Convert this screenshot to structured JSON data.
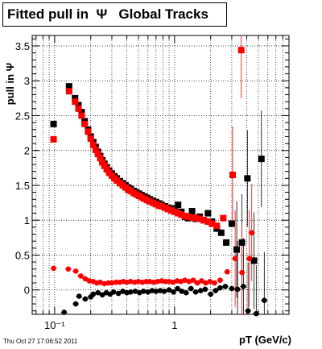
{
  "title": "Fitted pull in  Ψ   Global Tracks",
  "datestamp": "Thu Oct 27 17:06:52 2011",
  "chart_data": {
    "type": "scatter",
    "title": "Fitted pull in  Ψ   Global Tracks",
    "xlabel": "pT (GeV/c)",
    "ylabel": "pull in Ψ",
    "xscale": "log",
    "xlim": [
      0.065,
      9.0
    ],
    "ylim": [
      -0.35,
      3.65
    ],
    "x_ticks": [
      {
        "value": 0.1,
        "label": "10⁻¹"
      },
      {
        "value": 1,
        "label": "1"
      }
    ],
    "y_ticks": [
      {
        "value": 0,
        "label": "0"
      },
      {
        "value": 0.5,
        "label": "0.5"
      },
      {
        "value": 1,
        "label": "1"
      },
      {
        "value": 1.5,
        "label": "1.5"
      },
      {
        "value": 2,
        "label": "2"
      },
      {
        "value": 2.5,
        "label": "2.5"
      },
      {
        "value": 3,
        "label": "3"
      },
      {
        "value": 3.5,
        "label": "3.5"
      }
    ],
    "colors": {
      "black": "#000000",
      "red": "#ff0000"
    },
    "series": [
      {
        "color": "black",
        "marker": "square",
        "points": [
          [
            0.098,
            2.38
          ],
          [
            0.132,
            2.92
          ],
          [
            0.148,
            2.75
          ],
          [
            0.158,
            2.65
          ],
          [
            0.168,
            2.55
          ],
          [
            0.178,
            2.42
          ],
          [
            0.19,
            2.3
          ],
          [
            0.2,
            2.2
          ],
          [
            0.21,
            2.12
          ],
          [
            0.22,
            2.05
          ],
          [
            0.23,
            1.98
          ],
          [
            0.24,
            1.92
          ],
          [
            0.25,
            1.86
          ],
          [
            0.26,
            1.81
          ],
          [
            0.272,
            1.76
          ],
          [
            0.285,
            1.71
          ],
          [
            0.3,
            1.67
          ],
          [
            0.315,
            1.63
          ],
          [
            0.33,
            1.6
          ],
          [
            0.35,
            1.56
          ],
          [
            0.37,
            1.53
          ],
          [
            0.39,
            1.5
          ],
          [
            0.41,
            1.47
          ],
          [
            0.43,
            1.45
          ],
          [
            0.455,
            1.42
          ],
          [
            0.48,
            1.4
          ],
          [
            0.505,
            1.38
          ],
          [
            0.53,
            1.36
          ],
          [
            0.56,
            1.34
          ],
          [
            0.59,
            1.32
          ],
          [
            0.62,
            1.3
          ],
          [
            0.66,
            1.28
          ],
          [
            0.7,
            1.26
          ],
          [
            0.74,
            1.24
          ],
          [
            0.78,
            1.22
          ],
          [
            0.83,
            1.2
          ],
          [
            0.88,
            1.18
          ],
          [
            0.94,
            1.17
          ],
          [
            1.0,
            1.15
          ],
          [
            1.07,
            1.22
          ],
          [
            1.14,
            1.12
          ],
          [
            1.22,
            1.05
          ],
          [
            1.3,
            1.03
          ],
          [
            1.4,
            1.13
          ],
          [
            1.5,
            1.02
          ],
          [
            1.62,
            1.05
          ],
          [
            1.75,
            1.0
          ],
          [
            1.9,
            1.1
          ],
          [
            2.05,
            0.98
          ],
          [
            2.25,
            0.88
          ],
          [
            2.45,
            0.82
          ],
          [
            2.7,
            0.68
          ],
          [
            3.0,
            0.95
          ],
          [
            3.3,
            0.58
          ],
          [
            3.65,
            0.68
          ],
          [
            4.05,
            1.6
          ],
          [
            4.6,
            0.42
          ],
          [
            5.3,
            1.88
          ]
        ]
      },
      {
        "color": "red",
        "marker": "square",
        "points": [
          [
            0.098,
            2.16
          ],
          [
            0.132,
            2.85
          ],
          [
            0.148,
            2.7
          ],
          [
            0.158,
            2.6
          ],
          [
            0.168,
            2.5
          ],
          [
            0.178,
            2.38
          ],
          [
            0.19,
            2.27
          ],
          [
            0.2,
            2.17
          ],
          [
            0.21,
            2.08
          ],
          [
            0.22,
            2.01
          ],
          [
            0.23,
            1.95
          ],
          [
            0.24,
            1.89
          ],
          [
            0.25,
            1.83
          ],
          [
            0.26,
            1.78
          ],
          [
            0.272,
            1.73
          ],
          [
            0.285,
            1.68
          ],
          [
            0.3,
            1.64
          ],
          [
            0.315,
            1.6
          ],
          [
            0.33,
            1.57
          ],
          [
            0.35,
            1.53
          ],
          [
            0.37,
            1.5
          ],
          [
            0.39,
            1.47
          ],
          [
            0.41,
            1.44
          ],
          [
            0.43,
            1.42
          ],
          [
            0.455,
            1.39
          ],
          [
            0.48,
            1.37
          ],
          [
            0.505,
            1.35
          ],
          [
            0.53,
            1.33
          ],
          [
            0.56,
            1.31
          ],
          [
            0.59,
            1.29
          ],
          [
            0.62,
            1.27
          ],
          [
            0.66,
            1.25
          ],
          [
            0.7,
            1.23
          ],
          [
            0.74,
            1.21
          ],
          [
            0.78,
            1.2
          ],
          [
            0.83,
            1.18
          ],
          [
            0.88,
            1.16
          ],
          [
            0.94,
            1.14
          ],
          [
            1.0,
            1.12
          ],
          [
            1.07,
            1.1
          ],
          [
            1.14,
            1.08
          ],
          [
            1.22,
            1.06
          ],
          [
            1.3,
            1.05
          ],
          [
            1.4,
            1.04
          ],
          [
            1.5,
            1.03
          ],
          [
            1.62,
            1.02
          ],
          [
            1.75,
            1.0
          ],
          [
            1.9,
            0.98
          ],
          [
            2.05,
            0.95
          ],
          [
            2.25,
            0.92
          ],
          [
            2.55,
            1.03
          ],
          [
            3.05,
            1.65
          ],
          [
            3.6,
            3.44
          ]
        ]
      },
      {
        "color": "black",
        "marker": "circle",
        "points": [
          [
            0.12,
            -0.32
          ],
          [
            0.15,
            -0.2
          ],
          [
            0.16,
            -0.09
          ],
          [
            0.18,
            -0.13
          ],
          [
            0.2,
            -0.1
          ],
          [
            0.21,
            -0.06
          ],
          [
            0.23,
            -0.04
          ],
          [
            0.25,
            -0.07
          ],
          [
            0.27,
            -0.04
          ],
          [
            0.29,
            -0.06
          ],
          [
            0.31,
            -0.03
          ],
          [
            0.34,
            -0.05
          ],
          [
            0.37,
            -0.02
          ],
          [
            0.4,
            -0.04
          ],
          [
            0.43,
            -0.03
          ],
          [
            0.47,
            -0.02
          ],
          [
            0.51,
            -0.04
          ],
          [
            0.55,
            -0.02
          ],
          [
            0.6,
            -0.03
          ],
          [
            0.65,
            -0.01
          ],
          [
            0.7,
            -0.02
          ],
          [
            0.76,
            -0.01
          ],
          [
            0.82,
            -0.02
          ],
          [
            0.9,
            0.0
          ],
          [
            0.98,
            -0.03
          ],
          [
            1.06,
            0.02
          ],
          [
            1.15,
            -0.02
          ],
          [
            1.25,
            -0.04
          ],
          [
            1.37,
            0.02
          ],
          [
            1.5,
            -0.03
          ],
          [
            1.65,
            -0.01
          ],
          [
            1.8,
            0.01
          ],
          [
            2.0,
            -0.06
          ],
          [
            2.2,
            -0.01
          ],
          [
            2.4,
            0.03
          ],
          [
            2.65,
            0.05
          ],
          [
            3.0,
            0.02
          ],
          [
            3.35,
            0.01
          ],
          [
            3.75,
            0.05
          ],
          [
            4.1,
            -0.3
          ],
          [
            4.8,
            -0.34
          ],
          [
            5.6,
            -0.15
          ]
        ]
      },
      {
        "color": "red",
        "marker": "circle",
        "points": [
          [
            0.098,
            0.31
          ],
          [
            0.13,
            0.3
          ],
          [
            0.15,
            0.27
          ],
          [
            0.165,
            0.2
          ],
          [
            0.18,
            0.16
          ],
          [
            0.195,
            0.13
          ],
          [
            0.21,
            0.12
          ],
          [
            0.225,
            0.1
          ],
          [
            0.24,
            0.11
          ],
          [
            0.26,
            0.09
          ],
          [
            0.28,
            0.1
          ],
          [
            0.3,
            0.1
          ],
          [
            0.325,
            0.11
          ],
          [
            0.35,
            0.11
          ],
          [
            0.375,
            0.12
          ],
          [
            0.4,
            0.11
          ],
          [
            0.43,
            0.12
          ],
          [
            0.465,
            0.11
          ],
          [
            0.5,
            0.12
          ],
          [
            0.54,
            0.11
          ],
          [
            0.58,
            0.12
          ],
          [
            0.62,
            0.12
          ],
          [
            0.67,
            0.11
          ],
          [
            0.72,
            0.12
          ],
          [
            0.78,
            0.13
          ],
          [
            0.84,
            0.12
          ],
          [
            0.9,
            0.12
          ],
          [
            0.97,
            0.11
          ],
          [
            1.05,
            0.13
          ],
          [
            1.13,
            0.12
          ],
          [
            1.22,
            0.14
          ],
          [
            1.32,
            0.12
          ],
          [
            1.43,
            0.14
          ],
          [
            1.55,
            0.1
          ],
          [
            1.68,
            0.13
          ],
          [
            1.82,
            0.1
          ],
          [
            1.97,
            0.12
          ],
          [
            2.15,
            0.1
          ],
          [
            2.4,
            0.14
          ],
          [
            2.75,
            0.26
          ],
          [
            3.2,
            0.45
          ],
          [
            3.65,
            0.25
          ],
          [
            4.2,
            0.45
          ],
          [
            4.4,
            0.82
          ]
        ]
      }
    ]
  }
}
